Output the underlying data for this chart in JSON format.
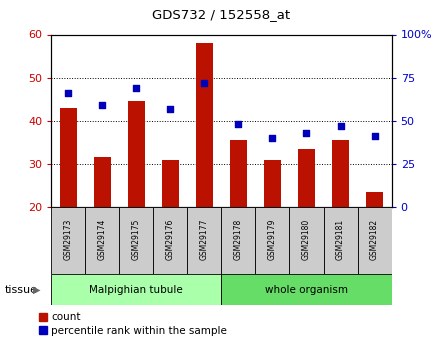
{
  "title": "GDS732 / 152558_at",
  "samples": [
    "GSM29173",
    "GSM29174",
    "GSM29175",
    "GSM29176",
    "GSM29177",
    "GSM29178",
    "GSM29179",
    "GSM29180",
    "GSM29181",
    "GSM29182"
  ],
  "counts": [
    43,
    31.5,
    44.5,
    31,
    58,
    35.5,
    31,
    33.5,
    35.5,
    23.5
  ],
  "percentiles": [
    66,
    59,
    69,
    57,
    72,
    48,
    40,
    43,
    47,
    41
  ],
  "tissue_groups": [
    {
      "label": "Malpighian tubule",
      "start": 0,
      "end": 5,
      "color": "#aaffaa"
    },
    {
      "label": "whole organism",
      "start": 5,
      "end": 10,
      "color": "#66dd66"
    }
  ],
  "ylim_left": [
    20,
    60
  ],
  "ylim_right": [
    0,
    100
  ],
  "yticks_left": [
    20,
    30,
    40,
    50,
    60
  ],
  "ytick_labels_right": [
    "0",
    "25",
    "50",
    "75",
    "100%"
  ],
  "bar_color": "#bb1100",
  "dot_color": "#0000bb",
  "bar_width": 0.5,
  "plot_bg": "#ffffff",
  "tick_color_left": "#cc0000",
  "tick_color_right": "#0000cc",
  "tissue_label": "tissue",
  "legend_count": "count",
  "legend_percentile": "percentile rank within the sample",
  "sample_box_color": "#cccccc",
  "gray_border": "#888888"
}
